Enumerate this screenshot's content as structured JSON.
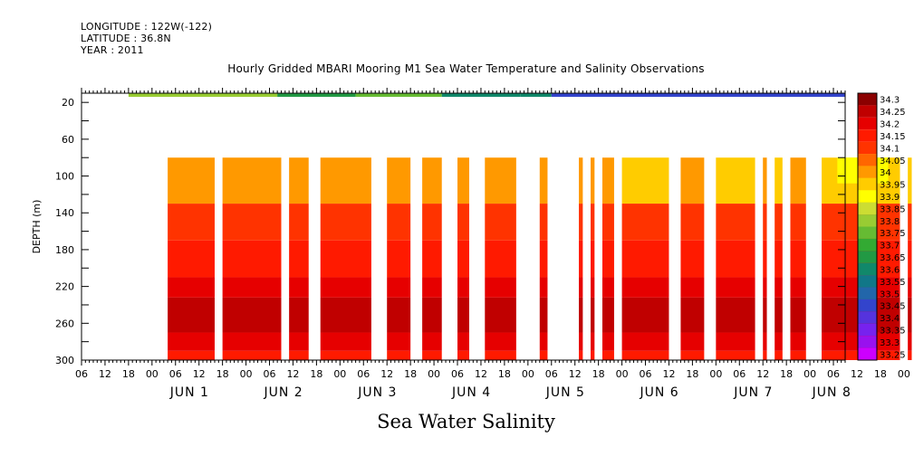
{
  "header": {
    "longitude": "LONGITUDE : 122W(-122)",
    "latitude": "LATITUDE : 36.8N",
    "year": "YEAR : 2011"
  },
  "title": "Hourly Gridded MBARI Mooring M1 Sea Water Temperature and Salinity Observations",
  "bottom_title": "Sea Water Salinity",
  "chart_data": {
    "type": "heatmap",
    "title": "Hourly Gridded MBARI Mooring M1 Sea Water Temperature and Salinity Observations",
    "xlabel": "",
    "ylabel": "DEPTH (m)",
    "x_unit": "hours since 2011-05-31 06:00",
    "xlim": [
      0,
      195
    ],
    "ylim": [
      300,
      10
    ],
    "y_ticks": [
      20,
      60,
      100,
      140,
      180,
      220,
      260,
      300
    ],
    "x_hour_ticks": [
      "06",
      "12",
      "18",
      "00",
      "06",
      "12",
      "18",
      "00",
      "06",
      "12",
      "18",
      "00",
      "06",
      "12",
      "18",
      "00",
      "06",
      "12",
      "18",
      "00",
      "06",
      "12",
      "18",
      "00",
      "06",
      "12",
      "18",
      "00",
      "06",
      "12",
      "18",
      "00",
      "06",
      "12",
      "18",
      "00",
      "06"
    ],
    "x_day_labels": [
      {
        "label": "JUN  1",
        "hour": 30
      },
      {
        "label": "JUN  2",
        "hour": 54
      },
      {
        "label": "JUN  3",
        "hour": 78
      },
      {
        "label": "JUN  4",
        "hour": 102
      },
      {
        "label": "JUN  5",
        "hour": 126
      },
      {
        "label": "JUN  6",
        "hour": 150
      },
      {
        "label": "JUN  7",
        "hour": 174
      },
      {
        "label": "JUN  8",
        "hour": 194
      }
    ],
    "colorbar": {
      "levels": [
        "34.3",
        "34.25",
        "34.2",
        "34.15",
        "34.1",
        "34.05",
        "34",
        "33.95",
        "33.9",
        "33.85",
        "33.8",
        "33.75",
        "33.7",
        "33.65",
        "33.6",
        "33.55",
        "33.5",
        "33.45",
        "33.4",
        "33.35",
        "33.3",
        "33.25"
      ],
      "colors": [
        "#8b0000",
        "#c00000",
        "#e60000",
        "#ff1a00",
        "#ff3300",
        "#ff6600",
        "#ff9900",
        "#ffcc00",
        "#ffff00",
        "#ccdd33",
        "#99cc33",
        "#66bb33",
        "#33aa33",
        "#229944",
        "#11886a",
        "#117788",
        "#2266aa",
        "#3344cc",
        "#5533dd",
        "#7722ee",
        "#9911ee",
        "#cc00ff"
      ]
    },
    "surface": {
      "depth_range": [
        10,
        14
      ],
      "segments": [
        {
          "x0": 12,
          "x1": 50,
          "value": 33.8
        },
        {
          "x0": 50,
          "x1": 70,
          "value": 33.65
        },
        {
          "x0": 70,
          "x1": 92,
          "value": 33.75
        },
        {
          "x0": 92,
          "x1": 112,
          "value": 33.6
        },
        {
          "x0": 112,
          "x1": 120,
          "value": 33.6
        },
        {
          "x0": 120,
          "x1": 195,
          "value": 33.45
        }
      ]
    },
    "subsurface": {
      "depth_range": [
        80,
        300
      ],
      "profile": [
        {
          "d0": 80,
          "d1": 130,
          "value": 34.0
        },
        {
          "d0": 130,
          "d1": 170,
          "value": 34.1
        },
        {
          "d0": 170,
          "d1": 210,
          "value": 34.15
        },
        {
          "d0": 210,
          "d1": 232,
          "value": 34.2
        },
        {
          "d0": 232,
          "d1": 270,
          "value": 34.25
        },
        {
          "d0": 270,
          "d1": 290,
          "value": 34.2
        },
        {
          "d0": 290,
          "d1": 300,
          "value": 34.15
        }
      ],
      "data_intervals": [
        [
          22,
          34
        ],
        [
          36,
          51
        ],
        [
          53,
          58
        ],
        [
          61,
          74
        ],
        [
          78,
          84
        ],
        [
          87,
          92
        ],
        [
          96,
          99
        ],
        [
          103,
          111
        ],
        [
          117,
          119
        ],
        [
          127,
          128
        ],
        [
          130,
          131
        ],
        [
          133,
          136
        ],
        [
          138,
          150
        ],
        [
          153,
          159
        ],
        [
          162,
          172
        ],
        [
          174,
          175
        ],
        [
          177,
          179
        ],
        [
          181,
          185
        ],
        [
          189,
          209
        ],
        [
          211,
          212
        ],
        [
          215,
          225
        ]
      ],
      "fresher_intervals": [
        [
          138,
          150
        ],
        [
          162,
          172
        ],
        [
          177,
          179
        ],
        [
          189,
          209
        ],
        [
          211,
          212
        ]
      ],
      "freshest_interval": [
        193,
        206
      ]
    }
  }
}
